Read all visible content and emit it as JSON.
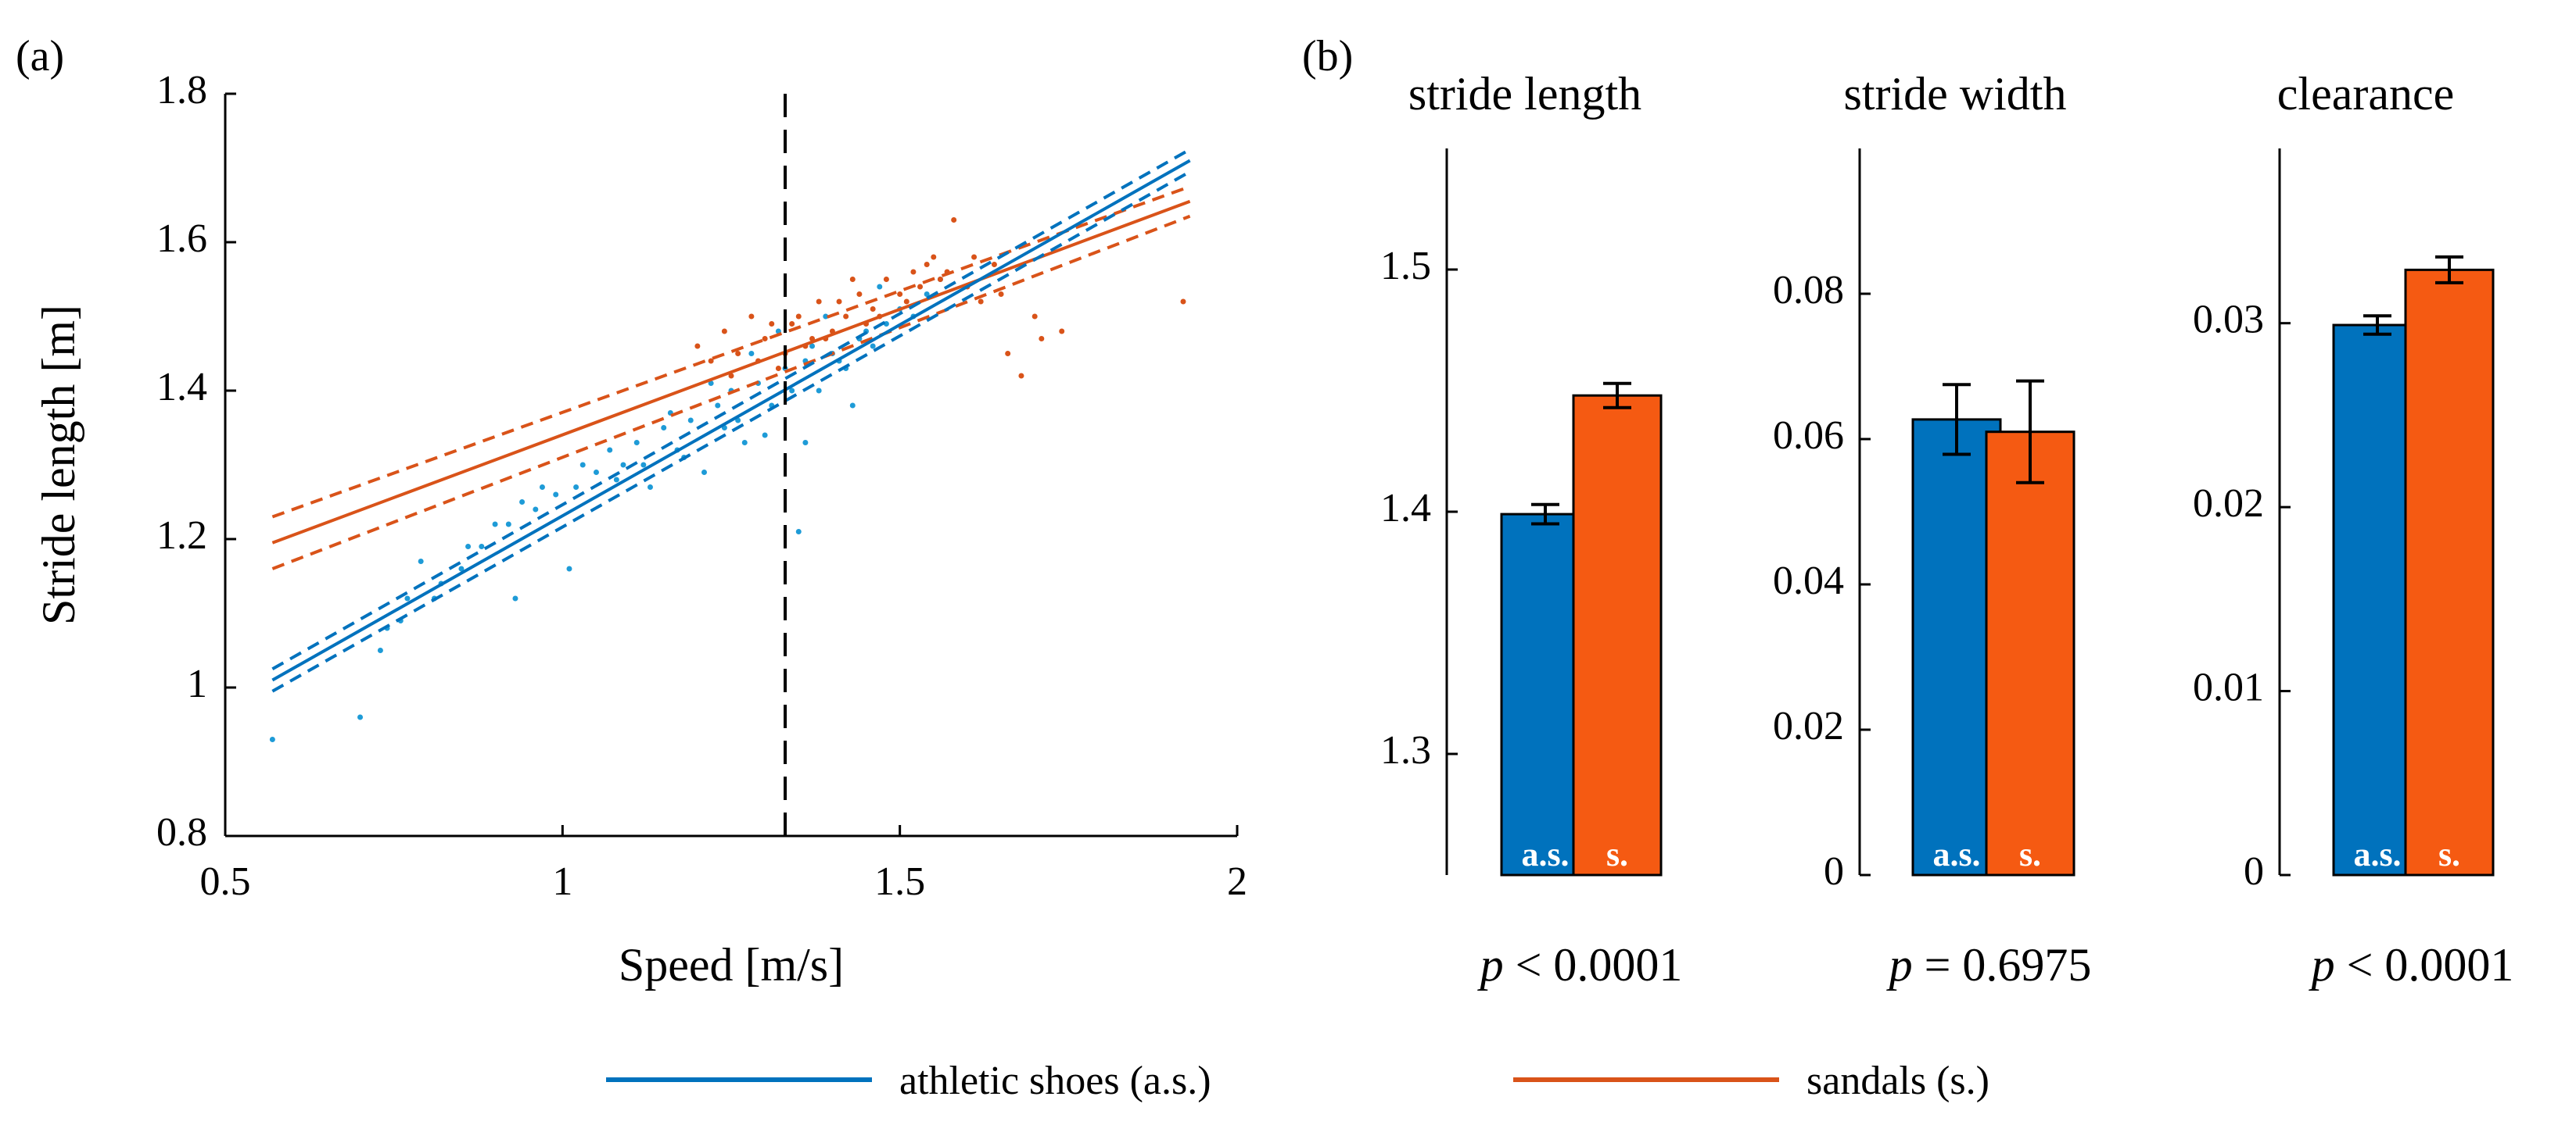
{
  "colors": {
    "athletic": "#0072BD",
    "athletic_points": "#1E9BD7",
    "sandals": "#D95319",
    "sandals_bar": "#F55A12",
    "axis": "#000000"
  },
  "panel_a": {
    "label": "(a)",
    "xlabel": "Speed [m/s]",
    "ylabel": "Stride length [m]",
    "xticks": [
      "0.5",
      "1",
      "1.5",
      "2"
    ],
    "yticks": [
      "0.8",
      "1",
      "1.2",
      "1.4",
      "1.6",
      "1.8"
    ]
  },
  "panel_b": {
    "label": "(b)",
    "bar_labels": [
      "a.s.",
      "s."
    ],
    "subplots": [
      {
        "title": "stride length",
        "yticks": [
          "1.3",
          "1.4",
          "1.5"
        ],
        "p_symbol": "p",
        "p_text": " < 0.0001"
      },
      {
        "title": "stride width",
        "yticks": [
          "0",
          "0.02",
          "0.04",
          "0.06",
          "0.08"
        ],
        "p_symbol": "p",
        "p_text": " = 0.6975"
      },
      {
        "title": "clearance",
        "yticks": [
          "0",
          "0.01",
          "0.02",
          "0.03"
        ],
        "p_symbol": "p",
        "p_text": " < 0.0001"
      }
    ]
  },
  "legend": {
    "athletic": "athletic shoes (a.s.)",
    "sandals": "sandals (s.)"
  },
  "chart_data": [
    {
      "type": "scatter",
      "xlabel": "Speed [m/s]",
      "ylabel": "Stride length [m]",
      "xlim": [
        0.5,
        2.0
      ],
      "ylim": [
        0.8,
        1.8
      ],
      "vertical_reference_line_x": 1.33,
      "series": [
        {
          "name": "athletic shoes (a.s.)",
          "fit": {
            "x": [
              0.57,
              1.93
            ],
            "y": [
              1.01,
              1.71
            ]
          },
          "ci_upper": {
            "x": [
              0.57,
              1.93
            ],
            "y": [
              1.025,
              1.725
            ]
          },
          "ci_lower": {
            "x": [
              0.57,
              1.93
            ],
            "y": [
              0.995,
              1.695
            ]
          },
          "points": [
            [
              0.57,
              0.93
            ],
            [
              0.7,
              0.96
            ],
            [
              0.74,
              1.08
            ],
            [
              0.76,
              1.09
            ],
            [
              0.79,
              1.17
            ],
            [
              0.82,
              1.14
            ],
            [
              0.85,
              1.16
            ],
            [
              0.88,
              1.19
            ],
            [
              0.9,
              1.22
            ],
            [
              0.93,
              1.12
            ],
            [
              0.94,
              1.25
            ],
            [
              0.97,
              1.27
            ],
            [
              0.99,
              1.26
            ],
            [
              1.01,
              1.16
            ],
            [
              1.03,
              1.3
            ],
            [
              1.05,
              1.29
            ],
            [
              1.07,
              1.32
            ],
            [
              1.09,
              1.3
            ],
            [
              1.11,
              1.33
            ],
            [
              1.13,
              1.27
            ],
            [
              1.15,
              1.35
            ],
            [
              1.17,
              1.32
            ],
            [
              1.19,
              1.36
            ],
            [
              1.21,
              1.29
            ],
            [
              1.23,
              1.38
            ],
            [
              1.25,
              1.4
            ],
            [
              1.27,
              1.33
            ],
            [
              1.29,
              1.41
            ],
            [
              1.31,
              1.38
            ],
            [
              1.33,
              1.43
            ],
            [
              1.35,
              1.21
            ],
            [
              1.36,
              1.44
            ],
            [
              1.38,
              1.4
            ],
            [
              1.4,
              1.45
            ],
            [
              1.42,
              1.43
            ],
            [
              1.44,
              1.47
            ],
            [
              1.46,
              1.46
            ],
            [
              1.48,
              1.49
            ],
            [
              1.5,
              1.51
            ],
            [
              1.52,
              1.5
            ],
            [
              1.54,
              1.53
            ],
            [
              1.56,
              1.55
            ],
            [
              1.18,
              1.31
            ],
            [
              1.12,
              1.3
            ],
            [
              1.26,
              1.36
            ],
            [
              1.3,
              1.34
            ],
            [
              1.34,
              1.4
            ],
            [
              1.37,
              1.46
            ],
            [
              1.41,
              1.44
            ],
            [
              1.45,
              1.48
            ],
            [
              1.22,
              1.41
            ],
            [
              1.28,
              1.45
            ],
            [
              1.16,
              1.37
            ],
            [
              1.32,
              1.48
            ],
            [
              1.39,
              1.5
            ],
            [
              1.47,
              1.54
            ],
            [
              1.43,
              1.38
            ],
            [
              1.36,
              1.33
            ],
            [
              1.24,
              1.35
            ],
            [
              1.08,
              1.28
            ],
            [
              1.02,
              1.27
            ],
            [
              0.96,
              1.24
            ],
            [
              0.92,
              1.22
            ],
            [
              0.86,
              1.19
            ],
            [
              0.81,
              1.12
            ],
            [
              0.77,
              1.12
            ],
            [
              0.73,
              1.05
            ]
          ]
        },
        {
          "name": "sandals (s.)",
          "fit": {
            "x": [
              0.57,
              1.93
            ],
            "y": [
              1.195,
              1.655
            ]
          },
          "ci_upper": {
            "x": [
              0.57,
              1.93
            ],
            "y": [
              1.23,
              1.675
            ]
          },
          "ci_lower": {
            "x": [
              0.57,
              1.93
            ],
            "y": [
              1.16,
              1.635
            ]
          },
          "points": [
            [
              1.2,
              1.46
            ],
            [
              1.22,
              1.44
            ],
            [
              1.24,
              1.48
            ],
            [
              1.26,
              1.45
            ],
            [
              1.28,
              1.5
            ],
            [
              1.3,
              1.47
            ],
            [
              1.32,
              1.43
            ],
            [
              1.34,
              1.49
            ],
            [
              1.36,
              1.46
            ],
            [
              1.38,
              1.52
            ],
            [
              1.4,
              1.48
            ],
            [
              1.42,
              1.5
            ],
            [
              1.44,
              1.53
            ],
            [
              1.46,
              1.51
            ],
            [
              1.48,
              1.55
            ],
            [
              1.5,
              1.53
            ],
            [
              1.52,
              1.56
            ],
            [
              1.54,
              1.57
            ],
            [
              1.56,
              1.55
            ],
            [
              1.58,
              1.63
            ],
            [
              1.6,
              1.54
            ],
            [
              1.62,
              1.52
            ],
            [
              1.64,
              1.57
            ],
            [
              1.66,
              1.45
            ],
            [
              1.68,
              1.42
            ],
            [
              1.7,
              1.5
            ],
            [
              1.74,
              1.48
            ],
            [
              1.92,
              1.52
            ],
            [
              1.55,
              1.58
            ],
            [
              1.53,
              1.54
            ],
            [
              1.45,
              1.49
            ],
            [
              1.41,
              1.52
            ],
            [
              1.37,
              1.47
            ],
            [
              1.33,
              1.45
            ],
            [
              1.29,
              1.44
            ],
            [
              1.25,
              1.42
            ],
            [
              1.31,
              1.49
            ],
            [
              1.35,
              1.5
            ],
            [
              1.39,
              1.47
            ],
            [
              1.43,
              1.55
            ],
            [
              1.47,
              1.5
            ],
            [
              1.51,
              1.52
            ],
            [
              1.57,
              1.56
            ],
            [
              1.61,
              1.58
            ],
            [
              1.65,
              1.53
            ],
            [
              1.71,
              1.47
            ]
          ]
        }
      ]
    },
    {
      "type": "bar",
      "title": "stride length",
      "categories": [
        "a.s.",
        "s."
      ],
      "values": [
        1.399,
        1.448
      ],
      "error": [
        0.004,
        0.005
      ],
      "ylim": [
        1.25,
        1.55
      ],
      "p_value": "p < 0.0001"
    },
    {
      "type": "bar",
      "title": "stride width",
      "categories": [
        "a.s.",
        "s."
      ],
      "values": [
        0.0627,
        0.061
      ],
      "error": [
        0.0048,
        0.007
      ],
      "ylim": [
        0,
        0.1
      ],
      "p_value": "p = 0.6975"
    },
    {
      "type": "bar",
      "title": "clearance",
      "categories": [
        "a.s.",
        "s."
      ],
      "values": [
        0.0299,
        0.0329
      ],
      "error": [
        0.0005,
        0.0007
      ],
      "ylim": [
        0,
        0.0395
      ],
      "p_value": "p < 0.0001"
    }
  ]
}
